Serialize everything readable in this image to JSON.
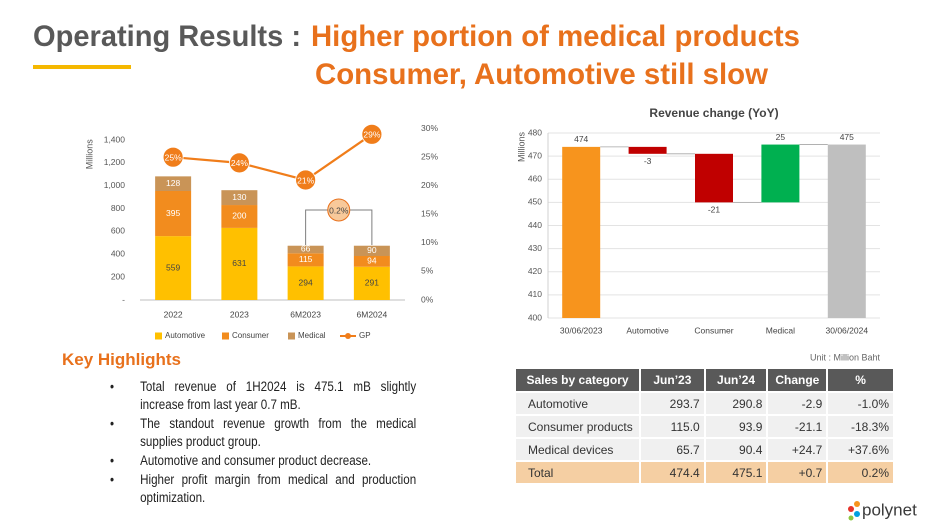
{
  "header": {
    "title_lead": "Operating Results :",
    "title_line1": "Higher portion of medical products",
    "title_line2": "Consumer, Automotive still slow"
  },
  "chart_data": [
    {
      "type": "bar",
      "stacked": true,
      "y_label": "Millions",
      "categories": [
        "2022",
        "2023",
        "6M2023",
        "6M2024"
      ],
      "series": [
        {
          "name": "Automotive",
          "color": "#ffc000",
          "values": [
            559,
            631,
            294,
            291
          ]
        },
        {
          "name": "Consumer",
          "color": "#f28c1e",
          "values": [
            395,
            200,
            115,
            94
          ]
        },
        {
          "name": "Medical",
          "color": "#c99457",
          "values": [
            128,
            130,
            66,
            90
          ]
        },
        {
          "name": "GP",
          "color": "#f07d1a",
          "axis": "y2",
          "values": [
            25,
            24,
            21,
            29
          ],
          "value_labels": [
            "25%",
            "24%",
            "21%",
            "29%"
          ]
        }
      ],
      "ylim": [
        0,
        1500
      ],
      "yticks": [
        {
          "value": 0,
          "label": "-"
        },
        200,
        400,
        600,
        800,
        {
          "value": 1000,
          "label": "1,000"
        },
        {
          "value": 1200,
          "label": "1,200"
        },
        {
          "value": 1400,
          "label": "1,400"
        }
      ],
      "y2lim": [
        0,
        30
      ],
      "y2ticks": [
        {
          "value": 0,
          "label": "0%"
        },
        {
          "value": 5,
          "label": "5%"
        },
        {
          "value": 10,
          "label": "10%"
        },
        {
          "value": 15,
          "label": "15%"
        },
        {
          "value": 20,
          "label": "20%"
        },
        {
          "value": 25,
          "label": "25%"
        },
        {
          "value": 30,
          "label": "30%"
        }
      ],
      "annotation": "0.2%",
      "legend": "bottom"
    },
    {
      "type": "waterfall",
      "title": "Revenue change (YoY)",
      "y_label": "Millions",
      "categories": [
        "30/06/2023",
        "Automotive",
        "Consumer",
        "Medical",
        "30/06/2024"
      ],
      "values": [
        474,
        -3,
        -21,
        25,
        475
      ],
      "colors": [
        "#f7941d",
        "#c00000",
        "#c00000",
        "#00b050",
        "#bfbfbf"
      ],
      "ylim": [
        400,
        480
      ],
      "yticks": [
        400,
        410,
        420,
        430,
        440,
        450,
        460,
        470,
        480
      ],
      "grid": true
    }
  ],
  "unit_note": "Unit : Million Baht",
  "table": {
    "columns": [
      "Sales by category",
      "Jun’23",
      "Jun’24",
      "Change",
      "%"
    ],
    "rows": [
      [
        "Automotive",
        "293.7",
        "290.8",
        "-2.9",
        "-1.0%"
      ],
      [
        "Consumer products",
        "115.0",
        "93.9",
        "-21.1",
        "-18.3%"
      ],
      [
        "Medical devices",
        "65.7",
        "90.4",
        "+24.7",
        "+37.6%"
      ]
    ],
    "total": [
      "Total",
      "474.4",
      "475.1",
      "+0.7",
      "0.2%"
    ]
  },
  "highlights": {
    "title": "Key Highlights",
    "items": [
      "Total revenue of 1H2024 is 475.1 mB slightly increase from last year 0.7 mB.",
      "The standout revenue growth from the medical supplies product group.",
      "Automotive and consumer product decrease.",
      "Higher profit margin from medical  and production optimization."
    ]
  },
  "logo": "polynet"
}
